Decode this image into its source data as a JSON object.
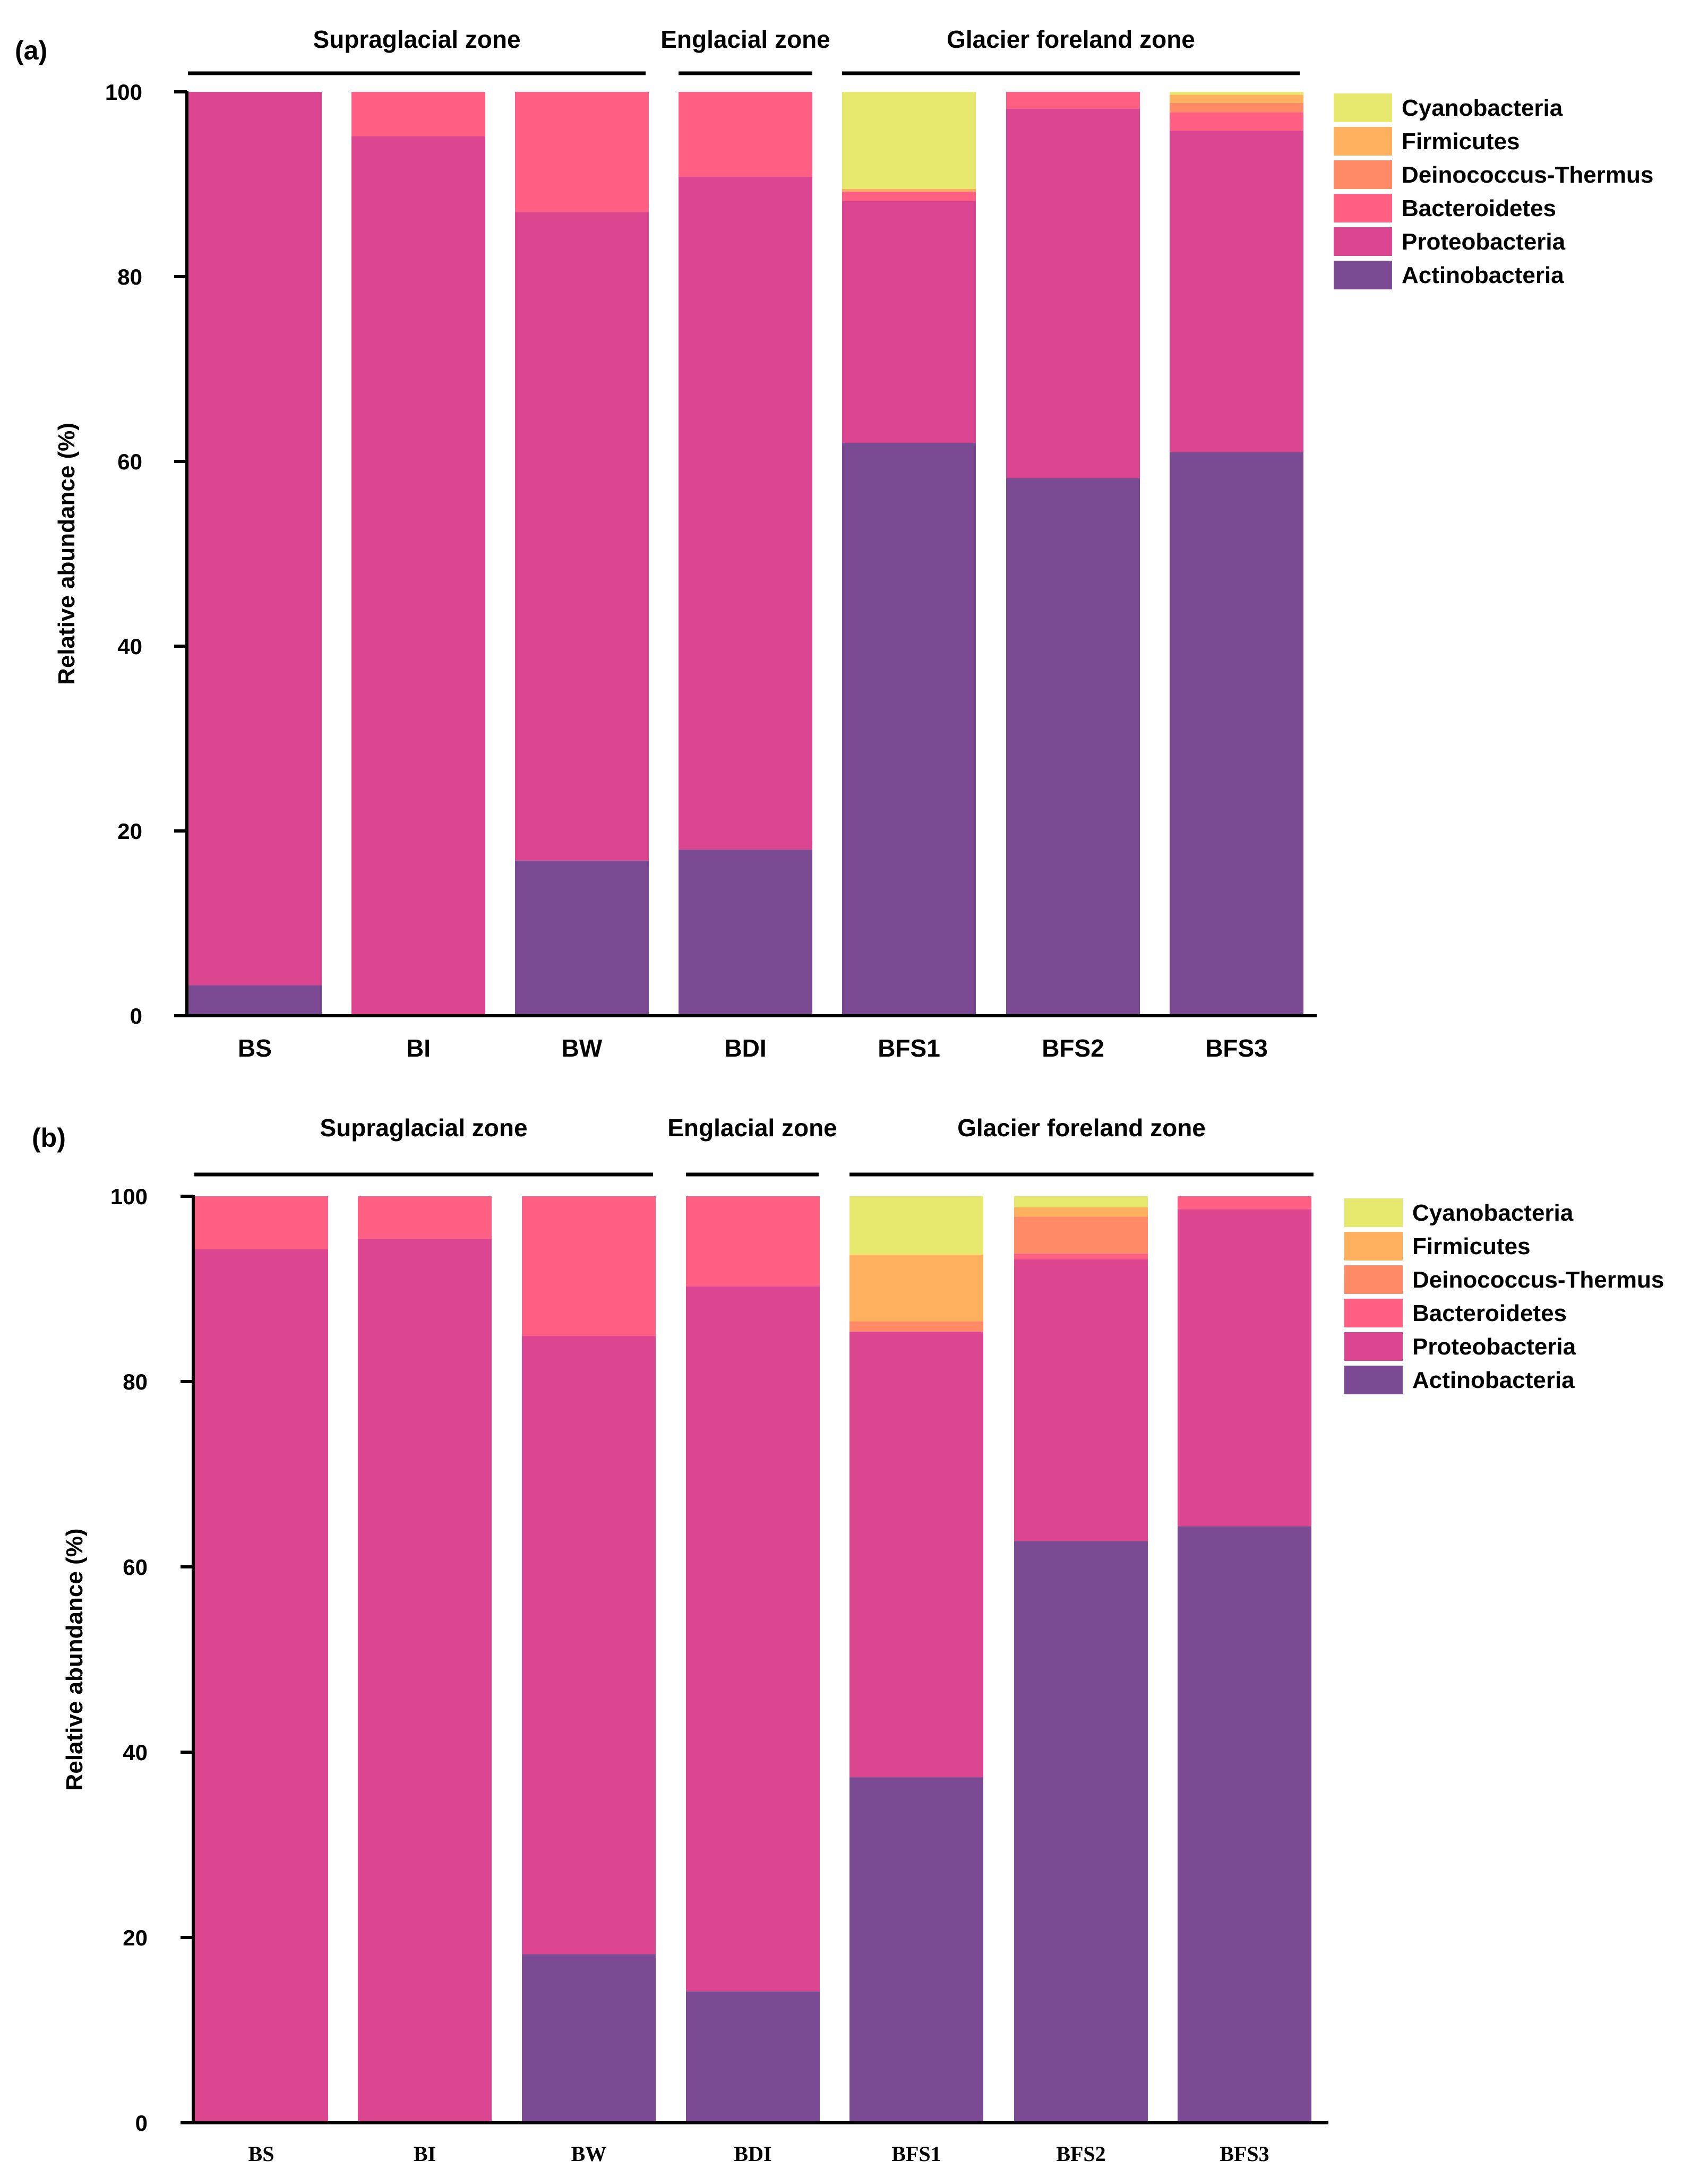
{
  "figure": {
    "series_colors": {
      "Actinobacteria": "#7a4a92",
      "Proteobacteria": "#dc4590",
      "Bacteroidetes": "#ff5f82",
      "Deinococcus-Thermus": "#ff8a66",
      "Firmicutes": "#ffb05e",
      "Cyanobacteria": "#e7e86e"
    }
  },
  "chart_data": [
    {
      "panel_label": "(a)",
      "type": "bar",
      "stacked": true,
      "categories": [
        "BS",
        "BI",
        "BW",
        "BDI",
        "BFS1",
        "BFS2",
        "BFS3"
      ],
      "category_font": "sans",
      "zones": [
        {
          "label": "Supraglacial zone",
          "categories": [
            "BS",
            "BI",
            "BW"
          ]
        },
        {
          "label": "Englacial zone",
          "categories": [
            "BDI"
          ]
        },
        {
          "label": "Glacier foreland zone",
          "categories": [
            "BFS1",
            "BFS2",
            "BFS3"
          ]
        }
      ],
      "ylabel": "Relative abundance (%)",
      "xlabel": "",
      "ylim": [
        0,
        100
      ],
      "yticks": [
        "0",
        "20",
        "40",
        "60",
        "80",
        "100"
      ],
      "legend_position": "top-right",
      "legend": [
        "Cyanobacteria",
        "Firmicutes",
        "Deinococcus-Thermus",
        "Bacteroidetes",
        "Proteobacteria",
        "Actinobacteria"
      ],
      "series": [
        {
          "name": "Actinobacteria",
          "values": [
            3.3,
            0,
            16.8,
            18.0,
            62.0,
            58.2,
            61.0
          ]
        },
        {
          "name": "Proteobacteria",
          "values": [
            96.7,
            95.2,
            70.2,
            72.8,
            26.2,
            40.0,
            34.8
          ]
        },
        {
          "name": "Bacteroidetes",
          "values": [
            0,
            4.8,
            13.0,
            9.2,
            1.0,
            1.8,
            2.0
          ]
        },
        {
          "name": "Deinococcus-Thermus",
          "values": [
            0,
            0,
            0,
            0,
            0,
            0,
            1.0
          ]
        },
        {
          "name": "Firmicutes",
          "values": [
            0,
            0,
            0,
            0,
            0.3,
            0,
            0.9
          ]
        },
        {
          "name": "Cyanobacteria",
          "values": [
            0,
            0,
            0,
            0,
            10.5,
            0,
            0.3
          ]
        }
      ]
    },
    {
      "panel_label": "(b)",
      "type": "bar",
      "stacked": true,
      "categories": [
        "BS",
        "BI",
        "BW",
        "BDI",
        "BFS1",
        "BFS2",
        "BFS3"
      ],
      "category_font": "serif",
      "zones": [
        {
          "label": "Supraglacial zone",
          "categories": [
            "BS",
            "BI",
            "BW"
          ]
        },
        {
          "label": "Englacial zone",
          "categories": [
            "BDI"
          ]
        },
        {
          "label": "Glacier foreland zone",
          "categories": [
            "BFS1",
            "BFS2",
            "BFS3"
          ]
        }
      ],
      "ylabel": "Relative abundance (%)",
      "xlabel": "",
      "ylim": [
        0,
        100
      ],
      "yticks": [
        "0",
        "20",
        "40",
        "60",
        "80",
        "100"
      ],
      "legend_position": "top-right",
      "legend": [
        "Cyanobacteria",
        "Firmicutes",
        "Deinococcus-Thermus",
        "Bacteroidetes",
        "Proteobacteria",
        "Actinobacteria"
      ],
      "series": [
        {
          "name": "Actinobacteria",
          "values": [
            0,
            0,
            18.2,
            14.2,
            37.3,
            62.8,
            64.4
          ]
        },
        {
          "name": "Proteobacteria",
          "values": [
            94.3,
            95.4,
            66.7,
            76.1,
            48.1,
            30.4,
            34.2
          ]
        },
        {
          "name": "Bacteroidetes",
          "values": [
            5.7,
            4.6,
            15.1,
            9.7,
            0,
            0.6,
            1.4
          ]
        },
        {
          "name": "Deinococcus-Thermus",
          "values": [
            0,
            0,
            0,
            0,
            1.1,
            4.0,
            0
          ]
        },
        {
          "name": "Firmicutes",
          "values": [
            0,
            0,
            0,
            0,
            7.2,
            1.0,
            0
          ]
        },
        {
          "name": "Cyanobacteria",
          "values": [
            0,
            0,
            0,
            0,
            6.3,
            1.2,
            0
          ]
        }
      ]
    }
  ]
}
